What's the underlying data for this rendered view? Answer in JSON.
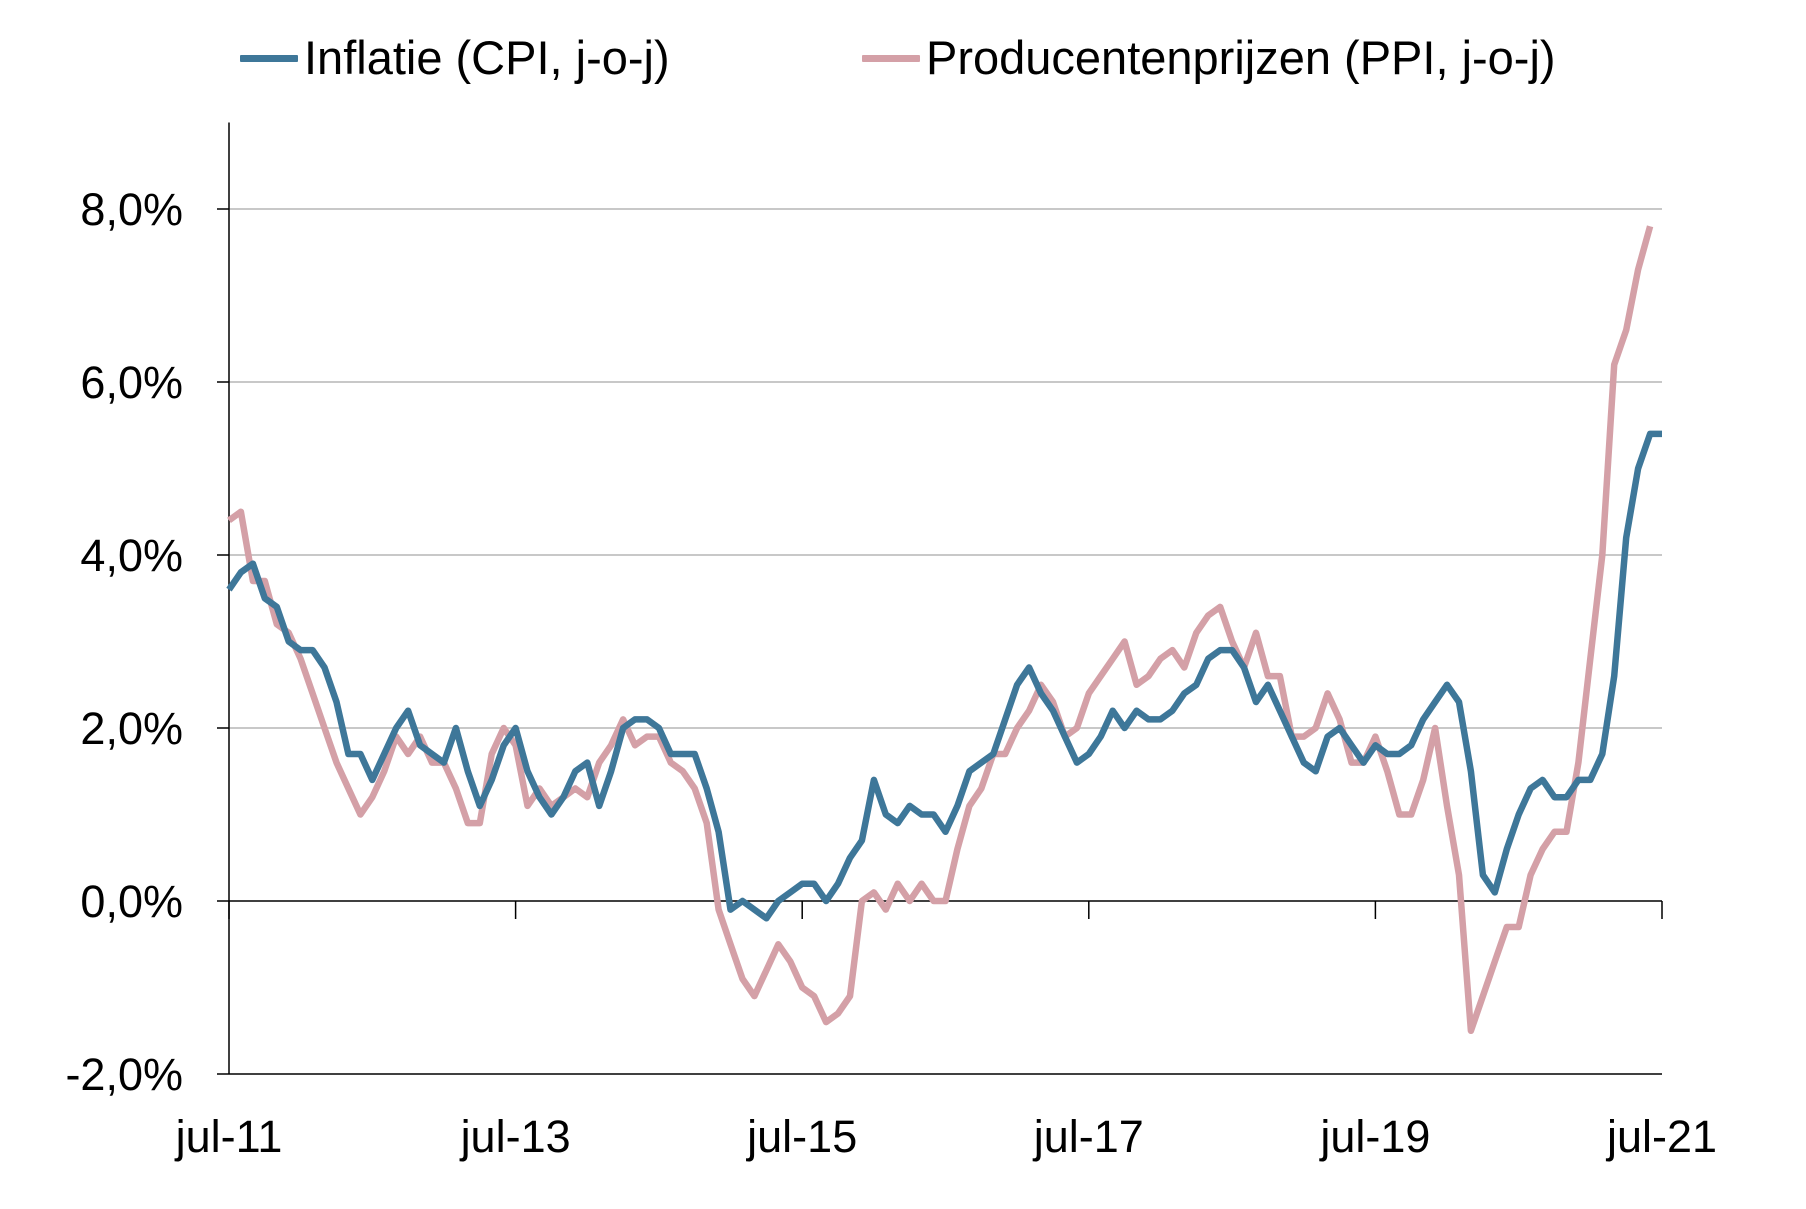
{
  "chart_data": {
    "type": "line",
    "y_ticks": [
      -2.0,
      0.0,
      2.0,
      4.0,
      6.0,
      8.0
    ],
    "y_tick_labels": [
      "-2,0%",
      "0,0%",
      "2,0%",
      "4,0%",
      "6,0%",
      "8,0%"
    ],
    "ylim": [
      -2.0,
      9.0
    ],
    "x_ticks": [
      "jul-11",
      "jul-13",
      "jul-15",
      "jul-17",
      "jul-19",
      "jul-21"
    ],
    "x_tick_positions": [
      0,
      24,
      48,
      72,
      96,
      120
    ],
    "xlim": [
      0,
      120
    ],
    "grid": "horizontal",
    "legend_position": "top",
    "series": [
      {
        "name": "Inflatie (CPI, j-o-j)",
        "color": "#3e7799",
        "values": [
          3.6,
          3.8,
          3.9,
          3.5,
          3.4,
          3.0,
          2.9,
          2.9,
          2.7,
          2.3,
          1.7,
          1.7,
          1.4,
          1.7,
          2.0,
          2.2,
          1.8,
          1.7,
          1.6,
          2.0,
          1.5,
          1.1,
          1.4,
          1.8,
          2.0,
          1.5,
          1.2,
          1.0,
          1.2,
          1.5,
          1.6,
          1.1,
          1.5,
          2.0,
          2.1,
          2.1,
          2.0,
          1.7,
          1.7,
          1.7,
          1.3,
          0.8,
          -0.1,
          0.0,
          -0.1,
          -0.2,
          0.0,
          0.1,
          0.2,
          0.2,
          0.0,
          0.2,
          0.5,
          0.7,
          1.4,
          1.0,
          0.9,
          1.1,
          1.0,
          1.0,
          0.8,
          1.1,
          1.5,
          1.6,
          1.7,
          2.1,
          2.5,
          2.7,
          2.4,
          2.2,
          1.9,
          1.6,
          1.7,
          1.9,
          2.2,
          2.0,
          2.2,
          2.1,
          2.1,
          2.2,
          2.4,
          2.5,
          2.8,
          2.9,
          2.9,
          2.7,
          2.3,
          2.5,
          2.2,
          1.9,
          1.6,
          1.5,
          1.9,
          2.0,
          1.8,
          1.6,
          1.8,
          1.7,
          1.7,
          1.8,
          2.1,
          2.3,
          2.5,
          2.3,
          1.5,
          0.3,
          0.1,
          0.6,
          1.0,
          1.3,
          1.4,
          1.2,
          1.2,
          1.4,
          1.4,
          1.7,
          2.6,
          4.2,
          5.0,
          5.4,
          5.4
        ]
      },
      {
        "name": "Producentenprijzen (PPI, j-o-j)",
        "color": "#d4a0a7",
        "values": [
          4.4,
          4.5,
          3.7,
          3.7,
          3.2,
          3.1,
          2.8,
          2.4,
          2.0,
          1.6,
          1.3,
          1.0,
          1.2,
          1.5,
          1.9,
          1.7,
          1.9,
          1.6,
          1.6,
          1.3,
          0.9,
          0.9,
          1.7,
          2.0,
          1.8,
          1.1,
          1.3,
          1.1,
          1.2,
          1.3,
          1.2,
          1.6,
          1.8,
          2.1,
          1.8,
          1.9,
          1.9,
          1.6,
          1.5,
          1.3,
          0.9,
          -0.1,
          -0.5,
          -0.9,
          -1.1,
          -0.8,
          -0.5,
          -0.7,
          -1.0,
          -1.1,
          -1.4,
          -1.3,
          -1.1,
          0.0,
          0.1,
          -0.1,
          0.2,
          0.0,
          0.2,
          0.0,
          0.0,
          0.6,
          1.1,
          1.3,
          1.7,
          1.7,
          2.0,
          2.2,
          2.5,
          2.3,
          1.9,
          2.0,
          2.4,
          2.6,
          2.8,
          3.0,
          2.5,
          2.6,
          2.8,
          2.9,
          2.7,
          3.1,
          3.3,
          3.4,
          3.0,
          2.7,
          3.1,
          2.6,
          2.6,
          1.9,
          1.9,
          2.0,
          2.4,
          2.1,
          1.6,
          1.6,
          1.9,
          1.5,
          1.0,
          1.0,
          1.4,
          2.0,
          1.1,
          0.3,
          -1.5,
          -1.1,
          -0.7,
          -0.3,
          -0.3,
          0.3,
          0.6,
          0.8,
          0.8,
          1.6,
          2.8,
          4.0,
          6.2,
          6.6,
          7.3,
          7.8
        ]
      }
    ]
  }
}
